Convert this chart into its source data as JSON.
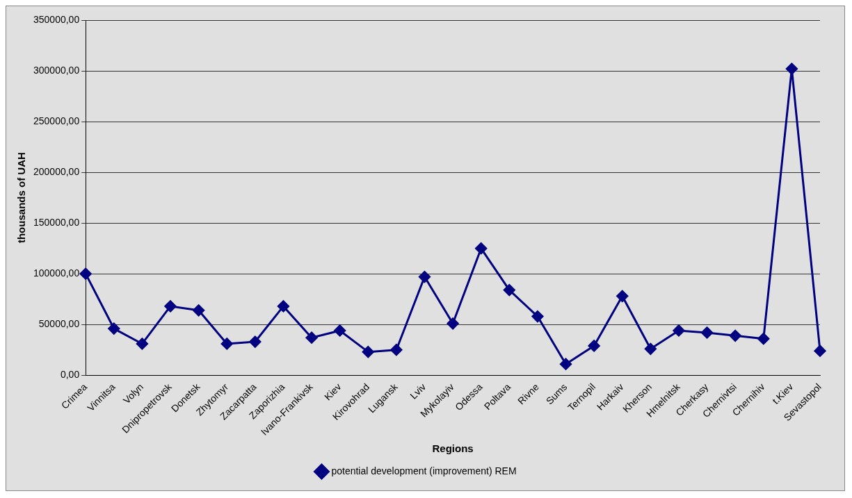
{
  "chart_data": {
    "type": "line",
    "xlabel": "Regions",
    "ylabel": "thousands of UAH",
    "categories": [
      "Crimea",
      "Vinnitsa",
      "Volyn",
      "Dnipropetrovsk",
      "Donetsk",
      "Zhytomyr",
      "Zacarpatta",
      "Zaporizhia",
      "Ivano-Frankivsk",
      "Kiev",
      "Kirovohrad",
      "Lugansk",
      "Lviv",
      "Mykolayiv",
      "Odessa",
      "Poltava",
      "Rivne",
      "Sums",
      "Ternopil",
      "Harkaiv",
      "Kherson",
      "Hmelnitsk",
      "Cherkasy",
      "Chernivtsi",
      "Chernihiv",
      "t.Kiev",
      "Sevastopol"
    ],
    "series": [
      {
        "name": "potential development (improvement) REM",
        "color": "#000080",
        "values": [
          100000,
          46000,
          31000,
          68000,
          64000,
          31000,
          33000,
          68000,
          37000,
          44000,
          23000,
          25000,
          97000,
          51000,
          125000,
          84000,
          58000,
          11000,
          29000,
          78000,
          26000,
          44000,
          42000,
          39000,
          36000,
          302000,
          24000
        ]
      }
    ],
    "ylim": [
      0,
      350000
    ],
    "yticks": [
      {
        "value": 0,
        "label": "0,00"
      },
      {
        "value": 50000,
        "label": "50000,00"
      },
      {
        "value": 100000,
        "label": "100000,00"
      },
      {
        "value": 150000,
        "label": "150000,00"
      },
      {
        "value": 200000,
        "label": "200000,00"
      },
      {
        "value": 250000,
        "label": "250000,00"
      },
      {
        "value": 300000,
        "label": "300000,00"
      },
      {
        "value": 350000,
        "label": "350000,00"
      }
    ],
    "grid": "y",
    "legend": "bottom",
    "marker": "diamond",
    "line_style": "solid"
  }
}
